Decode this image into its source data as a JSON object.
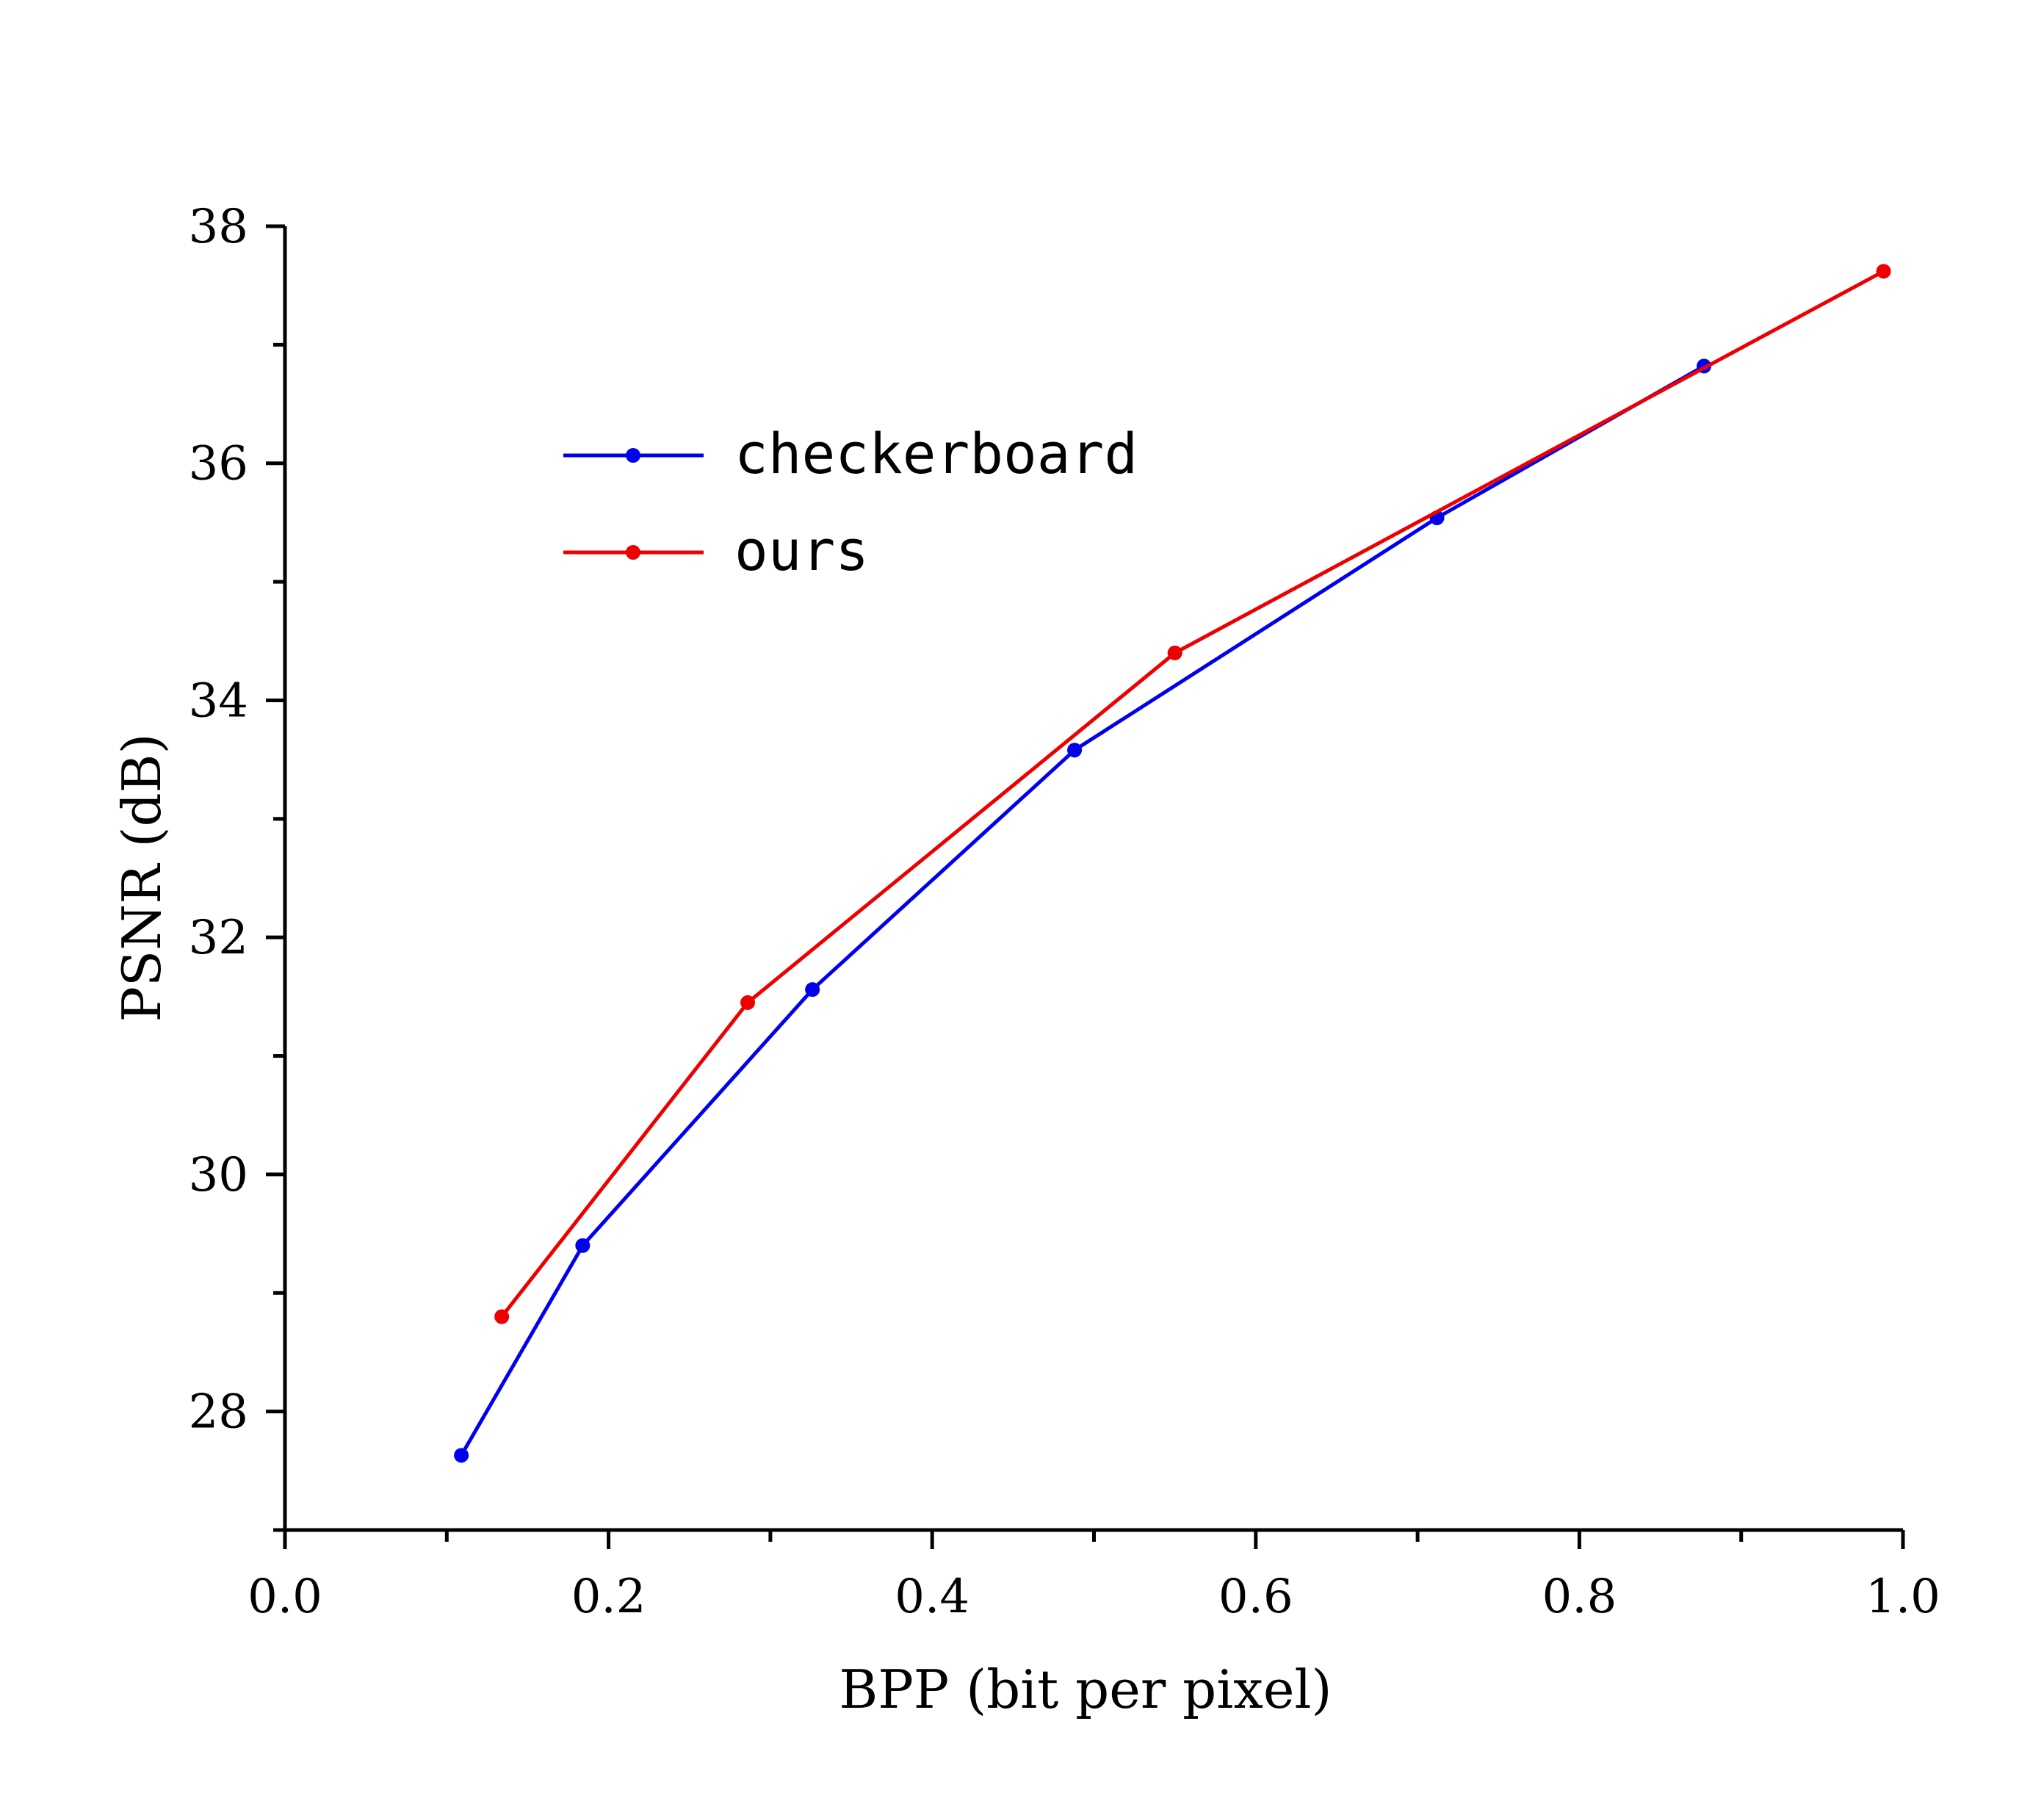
{
  "chart_data": {
    "type": "line",
    "title": "",
    "xlabel": "BPP (bit per pixel)",
    "ylabel": "PSNR (dB)",
    "xlim": [
      0.0,
      1.0
    ],
    "ylim": [
      27.0,
      38.0
    ],
    "xticks": [
      "0.0",
      "0.2",
      "0.4",
      "0.6",
      "0.8",
      "1.0"
    ],
    "yticks": [
      "28",
      "30",
      "32",
      "34",
      "36",
      "38"
    ],
    "grid": false,
    "legend_position": "top-left",
    "series": [
      {
        "name": "checkerboard",
        "color": "#0000ee",
        "x": [
          0.109,
          0.184,
          0.326,
          0.488,
          0.712,
          0.877
        ],
        "y": [
          27.63,
          29.4,
          31.56,
          33.58,
          35.54,
          36.82
        ]
      },
      {
        "name": "ours",
        "color": "#ee0000",
        "x": [
          0.134,
          0.286,
          0.55,
          0.988
        ],
        "y": [
          28.8,
          31.45,
          34.4,
          37.62
        ]
      }
    ]
  }
}
